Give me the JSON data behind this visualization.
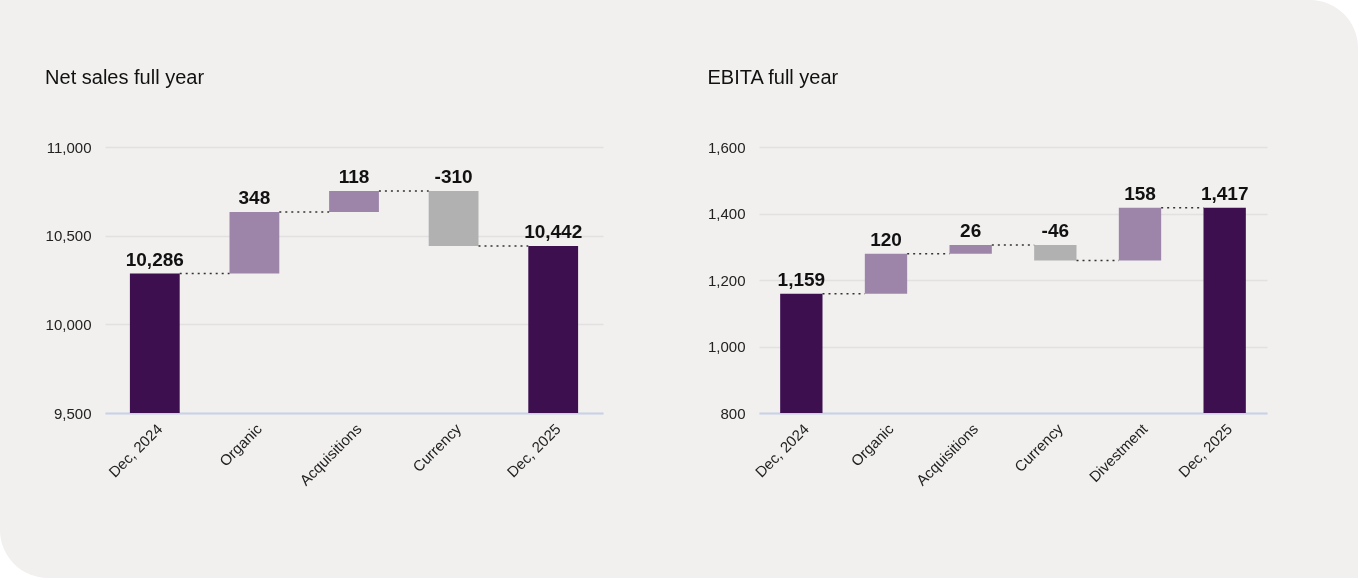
{
  "chart_data": [
    {
      "type": "bar",
      "title": "Net sales full year",
      "categories": [
        "Dec, 2024",
        "Organic",
        "Acquisitions",
        "Currency",
        "Dec, 2025"
      ],
      "values": [
        10286,
        348,
        118,
        -310,
        10442
      ],
      "value_labels": [
        "10,286",
        "348",
        "118",
        "-310",
        "10,442"
      ],
      "base": [
        null,
        10286,
        10634,
        10752,
        null
      ],
      "colors": [
        "#3d0f4f",
        "#9c85a9",
        "#9c85a9",
        "#b1b1b1",
        "#3d0f4f"
      ],
      "ylim": [
        9500,
        11000
      ],
      "yticks": [
        {
          "value": 9500,
          "label": "9,500"
        },
        {
          "value": 10000,
          "label": "10,000"
        },
        {
          "value": 10500,
          "label": "10,500"
        },
        {
          "value": 11000,
          "label": "11,000"
        }
      ],
      "grid": "y"
    },
    {
      "type": "bar",
      "title": "EBITA full year",
      "categories": [
        "Dec, 2024",
        "Organic",
        "Acquisitions",
        "Currency",
        "Divestment",
        "Dec, 2025"
      ],
      "values": [
        1159,
        120,
        26,
        -46,
        158,
        1417
      ],
      "value_labels": [
        "1,159",
        "120",
        "26",
        "-46",
        "158",
        "1,417"
      ],
      "base": [
        null,
        1159,
        1279,
        1305,
        1259,
        null
      ],
      "colors": [
        "#3d0f4f",
        "#9c85a9",
        "#9c85a9",
        "#b1b1b1",
        "#9c85a9",
        "#3d0f4f"
      ],
      "ylim": [
        800,
        1600
      ],
      "yticks": [
        800,
        {
          "value": 1000,
          "label": "1,000"
        },
        {
          "value": 1200,
          "label": "1,200"
        },
        {
          "value": 1400,
          "label": "1,400"
        },
        {
          "value": 1600,
          "label": "1,600"
        }
      ],
      "grid": "y"
    }
  ]
}
